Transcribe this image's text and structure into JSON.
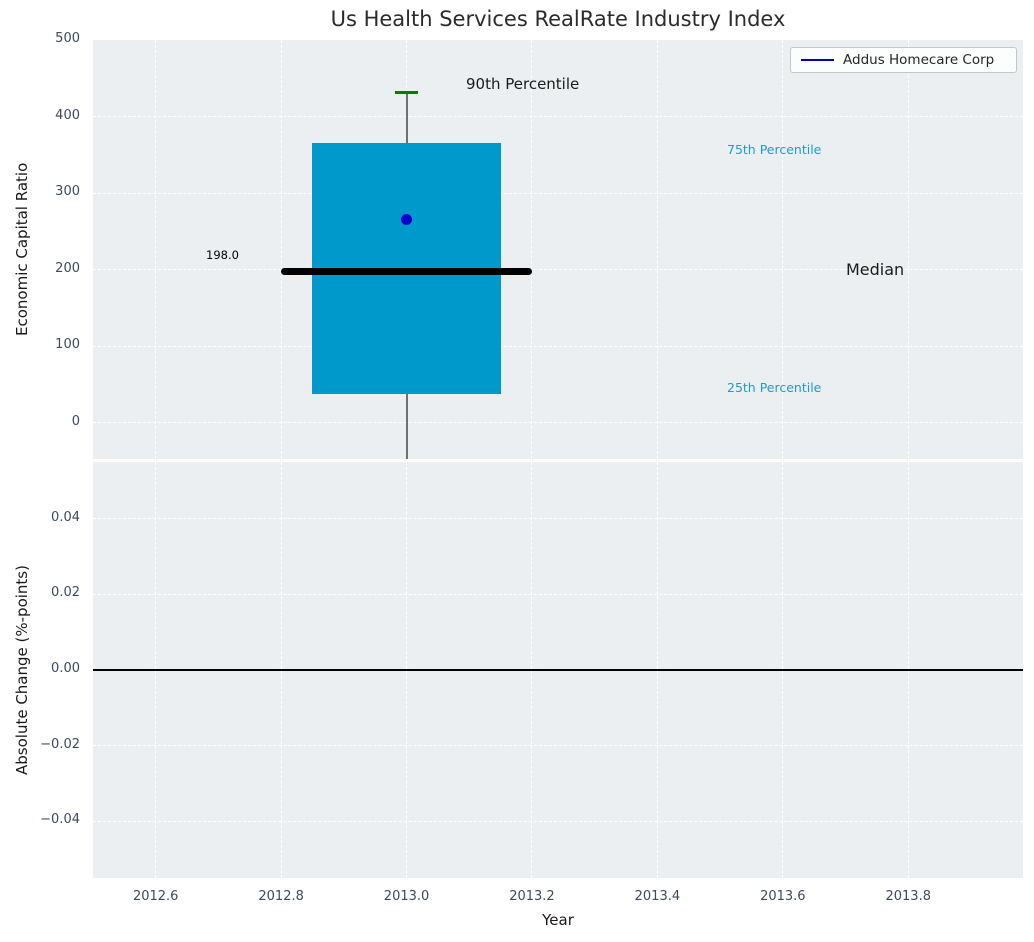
{
  "title": "Us Health Services RealRate Industry Index",
  "legend": {
    "label": "Addus Homecare Corp",
    "line_color": "#0000cd"
  },
  "colors": {
    "plot_background": "#eceff1",
    "grid": "#ffffff",
    "box_fill": "#0099cc",
    "cap_green": "#008000",
    "median_line": "#000000",
    "point_blue": "#0000cd",
    "percentile_label": "#1f9bce",
    "tick_label": "#3d4a5c"
  },
  "chart_data": [
    {
      "type": "boxplot",
      "title": "Us Health Services RealRate Industry Index",
      "ylabel": "Economic Capital Ratio",
      "xlim": [
        2012.5,
        2013.983
      ],
      "ylim": [
        -47.5,
        500
      ],
      "grid": true,
      "legend_position": "upper right",
      "legend_entries": [
        "Addus Homecare Corp"
      ],
      "xticks": [
        [
          2012.6,
          "2012.6"
        ],
        [
          2012.8,
          "2012.8"
        ],
        [
          2013.0,
          "2013.0"
        ],
        [
          2013.2,
          "2013.2"
        ],
        [
          2013.4,
          "2013.4"
        ],
        [
          2013.6,
          "2013.6"
        ],
        [
          2013.8,
          "2013.8"
        ]
      ],
      "yticks": [
        [
          0,
          "0"
        ],
        [
          100,
          "100"
        ],
        [
          200,
          "200"
        ],
        [
          300,
          "300"
        ],
        [
          400,
          "400"
        ],
        [
          500,
          "500"
        ]
      ],
      "box": {
        "x": 2013.0,
        "box_left": 2012.85,
        "box_right": 2013.15,
        "q1": 37,
        "median": 198.0,
        "q3": 366,
        "p90": 431,
        "cap_half_width": 0.018,
        "median_left": 2012.8,
        "median_right": 2013.2,
        "whisker_low_clipped": true
      },
      "point": {
        "series": "Addus Homecare Corp",
        "x": 2013.0,
        "y": 265
      },
      "annotations": {
        "p90": "90th Percentile",
        "p75": "75th Percentile",
        "median": "Median",
        "p25": "25th Percentile",
        "median_value": "198.0"
      }
    },
    {
      "type": "line",
      "ylabel": "Absolute Change (%-points)",
      "xlabel": "Year",
      "xlim": [
        2012.5,
        2013.983
      ],
      "ylim": [
        -0.055,
        0.055
      ],
      "grid": true,
      "xticks": [
        [
          2012.6,
          "2012.6"
        ],
        [
          2012.8,
          "2012.8"
        ],
        [
          2013.0,
          "2013.0"
        ],
        [
          2013.2,
          "2013.2"
        ],
        [
          2013.4,
          "2013.4"
        ],
        [
          2013.6,
          "2013.6"
        ],
        [
          2013.8,
          "2013.8"
        ]
      ],
      "yticks": [
        [
          0.04,
          "0.04"
        ],
        [
          0.02,
          "0.02"
        ],
        [
          0,
          "0.00"
        ],
        [
          -0.02,
          "−0.02"
        ],
        [
          -0.04,
          "−0.04"
        ]
      ],
      "zero_line": 0.0,
      "series": []
    }
  ]
}
